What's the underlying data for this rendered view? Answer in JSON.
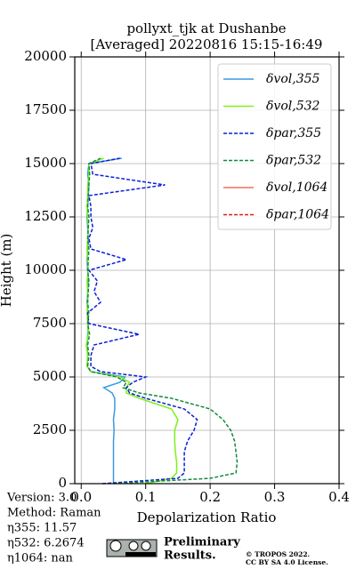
{
  "chart_data": {
    "type": "line",
    "title": [
      "pollyxt_tjk at Dushanbe",
      "[Averaged] 20220816 15:15-16:49"
    ],
    "xlabel": "Depolarization Ratio",
    "ylabel": "Height (m)",
    "xlim": [
      -0.01,
      0.4
    ],
    "ylim": [
      0,
      20000
    ],
    "xticks": [
      {
        "value": 0,
        "label": "0.0"
      },
      0.1,
      0.2,
      0.3,
      0.4
    ],
    "yticks": [
      0,
      2500,
      5000,
      7500,
      10000,
      12500,
      15000,
      17500,
      20000
    ],
    "grid": true,
    "legend": "upper right",
    "y": [
      0,
      250,
      500,
      1000,
      1500,
      2000,
      2500,
      3000,
      3500,
      4000,
      4250,
      4500,
      4750,
      5000,
      5250,
      5500,
      6000,
      6500,
      7000,
      7500,
      8000,
      8500,
      9000,
      9500,
      10000,
      10500,
      11000,
      11500,
      12000,
      12500,
      13000,
      13500,
      14000,
      14500,
      15000,
      15250
    ],
    "series": [
      {
        "name": "δvol,355",
        "color": "#3a9be0",
        "dashed": false,
        "values": [
          0.05,
          0.05,
          0.05,
          0.05,
          0.05,
          0.05,
          0.051,
          0.05,
          0.052,
          0.052,
          0.048,
          0.035,
          0.06,
          0.068,
          0.015,
          0.009,
          0.01,
          0.009,
          0.01,
          0.011,
          0.01,
          0.009,
          0.01,
          0.011,
          0.01,
          0.009,
          0.01,
          0.011,
          0.01,
          0.009,
          0.01,
          0.011,
          0.012,
          0.01,
          0.012,
          0.063
        ]
      },
      {
        "name": "δvol,532",
        "color": "#7ff01a",
        "dashed": false,
        "values": [
          0.1,
          0.14,
          0.148,
          0.148,
          0.146,
          0.145,
          0.145,
          0.15,
          0.14,
          0.09,
          0.07,
          0.07,
          0.075,
          0.06,
          0.015,
          0.009,
          0.01,
          0.008,
          0.011,
          0.01,
          0.009,
          0.01,
          0.01,
          0.009,
          0.011,
          0.01,
          0.009,
          0.01,
          0.011,
          0.01,
          0.009,
          0.01,
          0.01,
          0.012,
          0.012,
          0.035
        ]
      },
      {
        "name": "δpar,355",
        "color": "#0b1fd6",
        "dashed": true,
        "values": [
          0.033,
          0.15,
          0.16,
          0.16,
          0.16,
          0.165,
          0.175,
          0.18,
          0.16,
          0.1,
          0.075,
          0.07,
          0.08,
          0.1,
          0.03,
          0.015,
          0.015,
          0.02,
          0.09,
          0.012,
          0.01,
          0.03,
          0.02,
          0.025,
          0.012,
          0.07,
          0.015,
          0.012,
          0.018,
          0.015,
          0.015,
          0.012,
          0.13,
          0.018,
          0.015,
          0.06
        ]
      },
      {
        "name": "δpar,532",
        "color": "#138a3e",
        "dashed": true,
        "values": [
          0.05,
          0.2,
          0.24,
          0.242,
          0.24,
          0.238,
          0.232,
          0.22,
          0.2,
          0.14,
          0.09,
          0.065,
          0.07,
          0.055,
          0.015,
          0.01,
          0.012,
          0.01,
          0.013,
          0.01,
          0.012,
          0.01,
          0.011,
          0.012,
          0.01,
          0.011,
          0.012,
          0.01,
          0.011,
          0.012,
          0.01,
          0.011,
          0.012,
          0.013,
          0.012,
          0.03
        ]
      },
      {
        "name": "δvol,1064",
        "color": "#f0705a",
        "dashed": false,
        "values": [
          null,
          null,
          null,
          null,
          null,
          null,
          null,
          null,
          null,
          null,
          null,
          null,
          null,
          null,
          null,
          null,
          null,
          null,
          null,
          null,
          null,
          null,
          null,
          null,
          null,
          null,
          null,
          null,
          null,
          null,
          null,
          null,
          null,
          null,
          null,
          null
        ]
      },
      {
        "name": "δpar,1064",
        "color": "#d81e1e",
        "dashed": true,
        "values": [
          null,
          null,
          null,
          null,
          null,
          null,
          null,
          null,
          null,
          null,
          null,
          null,
          null,
          null,
          null,
          null,
          null,
          null,
          null,
          null,
          null,
          null,
          null,
          null,
          null,
          null,
          null,
          null,
          null,
          null,
          null,
          null,
          null,
          null,
          null,
          null
        ]
      }
    ]
  },
  "notes": {
    "info": [
      "Version: 3.0",
      "Method: Raman",
      "η355:  11.57",
      "η532: 6.2674",
      "η1064:    nan"
    ],
    "preliminary": [
      "Preliminary",
      "Results."
    ],
    "license": [
      "© TROPOS 2022.",
      "CC BY SA 4.0 License."
    ]
  }
}
